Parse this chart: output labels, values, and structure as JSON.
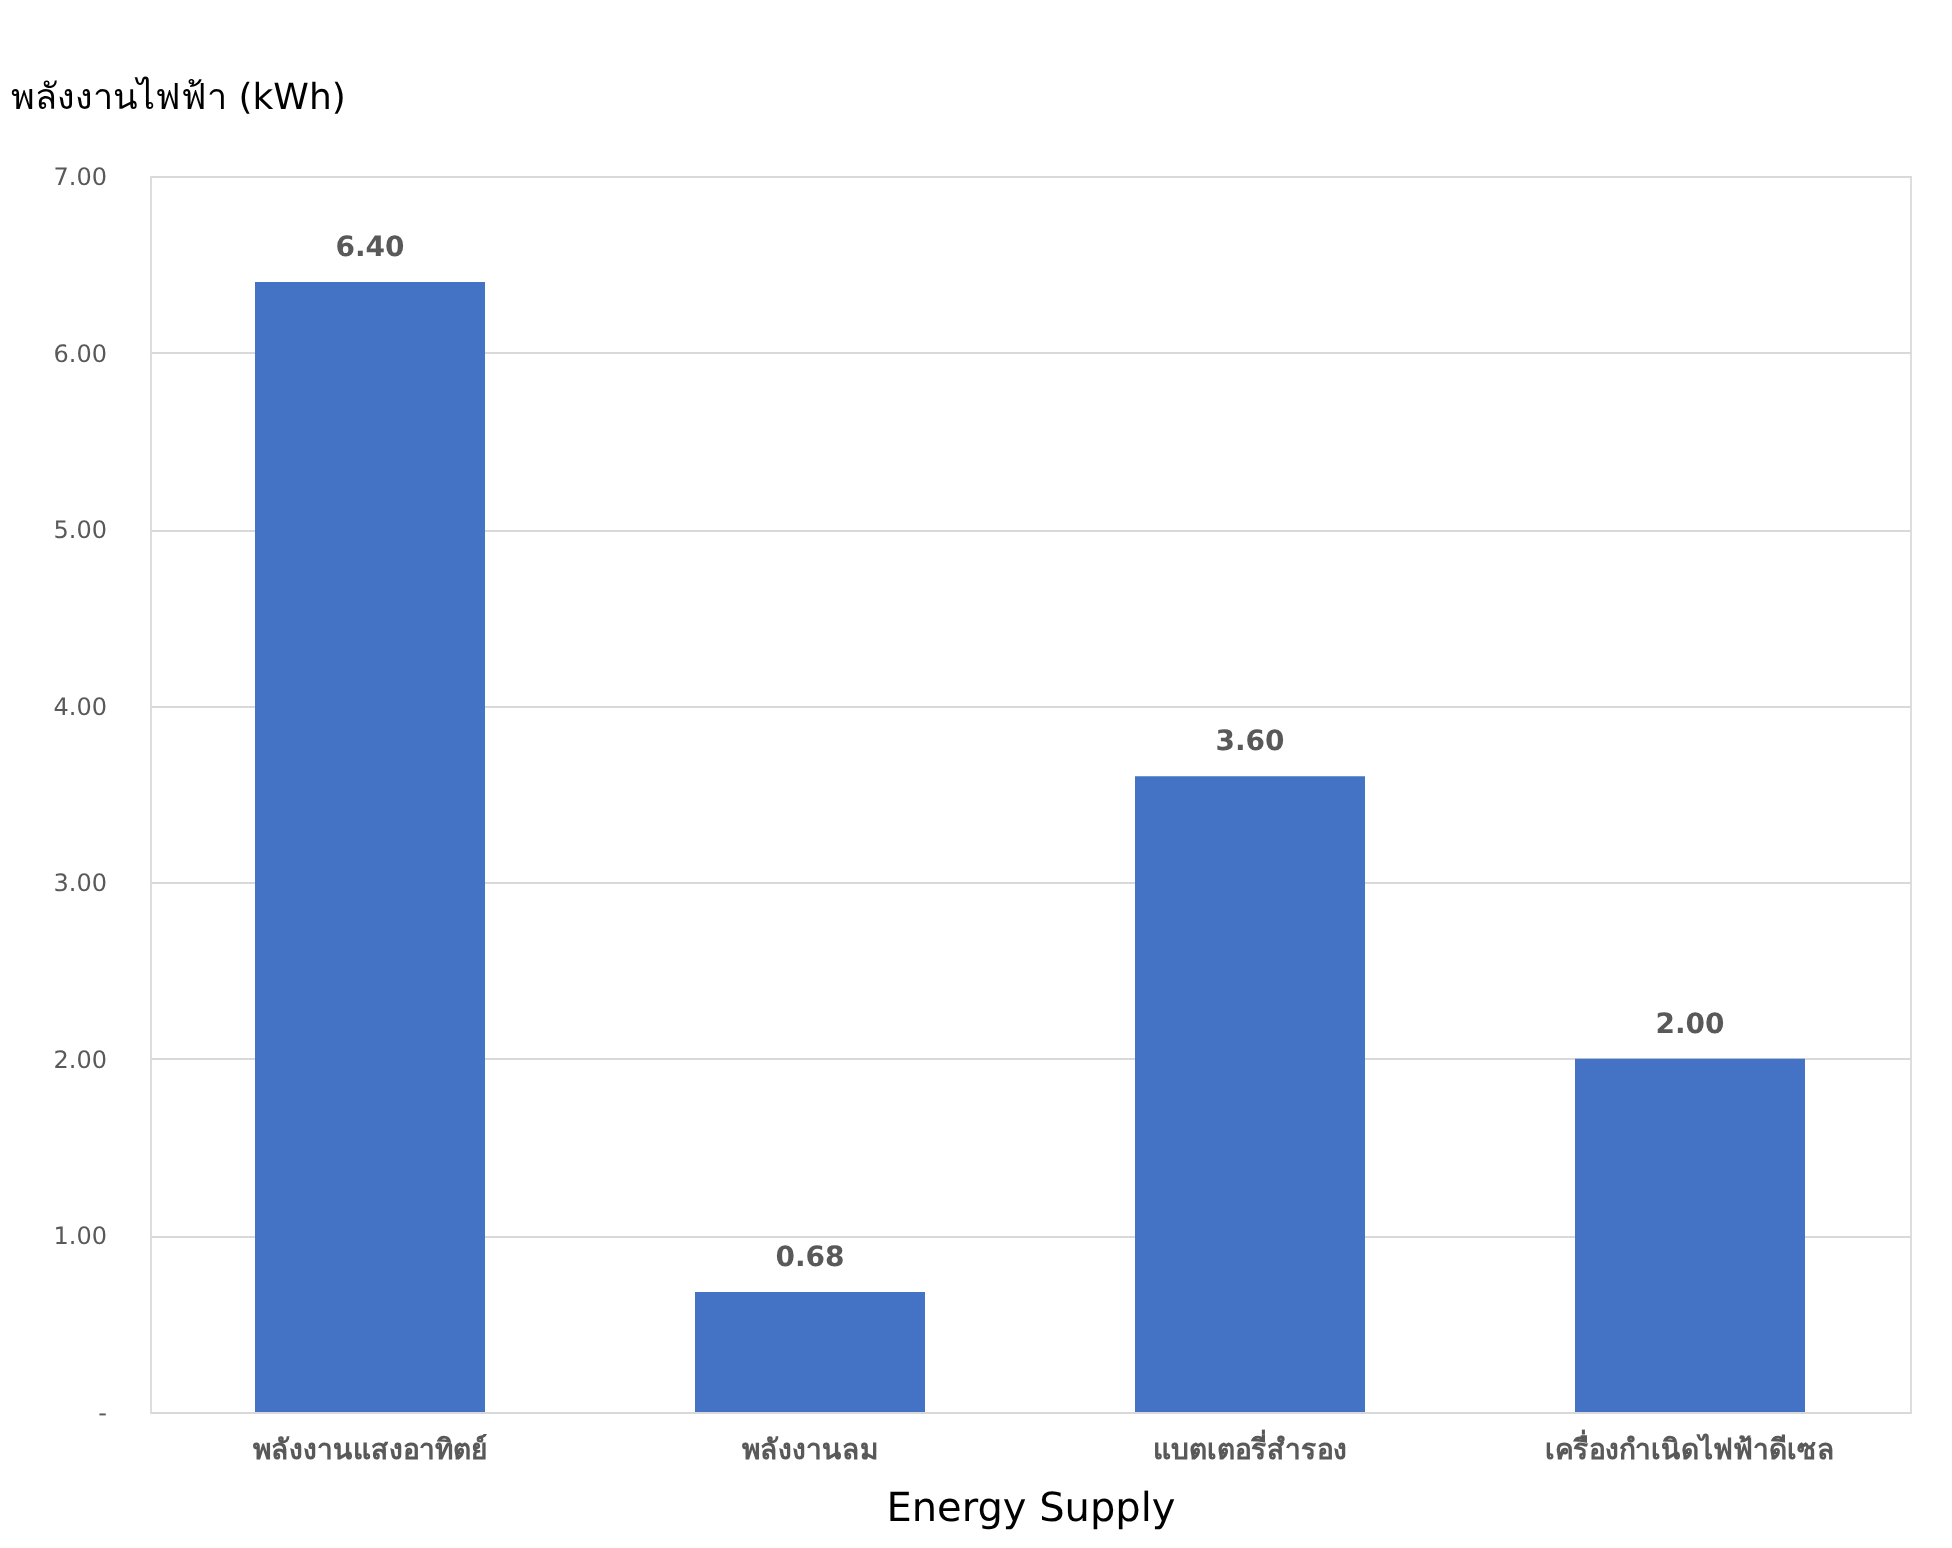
{
  "chart_data": {
    "type": "bar",
    "ylabel": "พลังงานไฟฟ้า (kWh)",
    "xlabel": "Energy Supply",
    "categories": [
      "พลังงานแสงอาทิตย์",
      "พลังงานลม",
      "แบตเตอรี่สำรอง",
      "เครื่องกำเนิดไฟฟ้าดีเซล"
    ],
    "values": [
      6.4,
      0.68,
      3.6,
      2.0
    ],
    "color": "#4472c4",
    "value_labels": [
      "6.40",
      "0.68",
      "3.60",
      "2.00"
    ],
    "ylim": [
      0,
      7
    ],
    "yticks": [
      {
        "value": 0,
        "label": "-"
      },
      {
        "value": 1,
        "label": "1.00"
      },
      {
        "value": 2,
        "label": "2.00"
      },
      {
        "value": 3,
        "label": "3.00"
      },
      {
        "value": 4,
        "label": "4.00"
      },
      {
        "value": 5,
        "label": "5.00"
      },
      {
        "value": 6,
        "label": "6.00"
      },
      {
        "value": 7,
        "label": "7.00"
      }
    ],
    "grid": "y"
  }
}
